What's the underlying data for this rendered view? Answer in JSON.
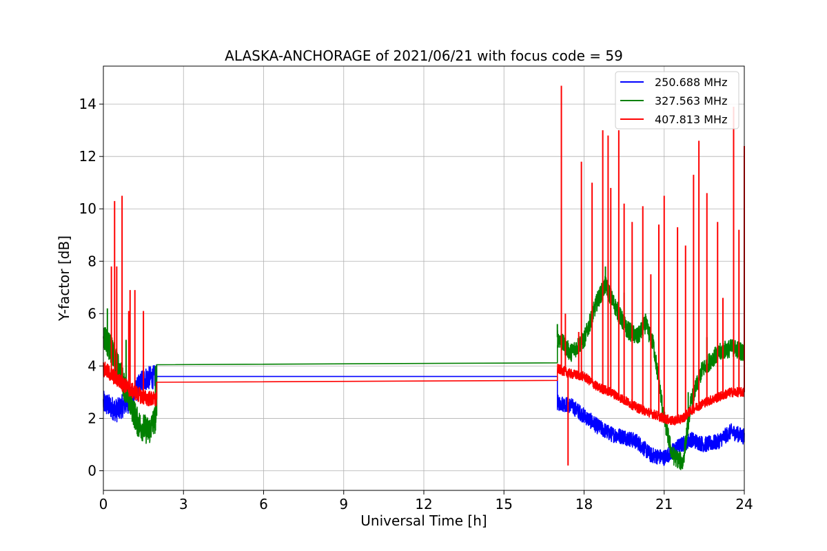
{
  "chart_data": {
    "type": "line",
    "title": "ALASKA-ANCHORAGE of 2021/06/21 with focus code = 59",
    "xlabel": "Universal Time [h]",
    "ylabel": "Y-factor [dB]",
    "xlim": [
      0,
      24
    ],
    "ylim": [
      -0.75,
      15.45
    ],
    "xticks": [
      0,
      3,
      6,
      9,
      12,
      15,
      18,
      21,
      24
    ],
    "yticks": [
      0,
      2,
      4,
      6,
      8,
      10,
      12,
      14
    ],
    "grid": true,
    "legend_position": "upper right",
    "series": [
      {
        "name": "250.688 MHz",
        "color": "#0000ff",
        "segments": [
          {
            "range": [
              0.0,
              2.0
            ],
            "noise": 0.45,
            "anchors": [
              [
                0.0,
                2.6
              ],
              [
                0.5,
                2.3
              ],
              [
                1.0,
                2.7
              ],
              [
                1.5,
                3.5
              ],
              [
                2.0,
                3.6
              ]
            ]
          },
          {
            "range": [
              2.0,
              17.0
            ],
            "noise": 0,
            "anchors": [
              [
                2.0,
                3.6
              ],
              [
                17.0,
                3.6
              ]
            ]
          },
          {
            "range": [
              17.0,
              24.0
            ],
            "noise": 0.3,
            "anchors": [
              [
                17.0,
                2.6
              ],
              [
                17.5,
                2.5
              ],
              [
                18.0,
                2.1
              ],
              [
                18.5,
                1.7
              ],
              [
                19.0,
                1.4
              ],
              [
                19.5,
                1.3
              ],
              [
                20.0,
                1.1
              ],
              [
                20.5,
                0.6
              ],
              [
                21.0,
                0.5
              ],
              [
                21.5,
                0.9
              ],
              [
                22.0,
                1.2
              ],
              [
                22.5,
                1.0
              ],
              [
                23.0,
                1.1
              ],
              [
                23.5,
                1.5
              ],
              [
                24.0,
                1.3
              ]
            ]
          }
        ],
        "spikes": []
      },
      {
        "name": "327.563 MHz",
        "color": "#008000",
        "segments": [
          {
            "range": [
              0.0,
              2.0
            ],
            "noise": 0.55,
            "anchors": [
              [
                0.0,
                5.2
              ],
              [
                0.3,
                4.6
              ],
              [
                0.6,
                3.8
              ],
              [
                1.0,
                2.6
              ],
              [
                1.3,
                1.8
              ],
              [
                1.7,
                1.5
              ],
              [
                2.0,
                2.1
              ]
            ]
          },
          {
            "range": [
              2.0,
              17.0
            ],
            "noise": 0,
            "anchors": [
              [
                2.0,
                4.05
              ],
              [
                17.0,
                4.12
              ]
            ]
          },
          {
            "range": [
              17.0,
              24.0
            ],
            "noise": 0.35,
            "anchors": [
              [
                17.0,
                5.1
              ],
              [
                17.5,
                4.5
              ],
              [
                18.0,
                5.0
              ],
              [
                18.5,
                6.5
              ],
              [
                18.8,
                7.1
              ],
              [
                19.2,
                6.2
              ],
              [
                19.6,
                5.4
              ],
              [
                20.0,
                5.1
              ],
              [
                20.3,
                5.6
              ],
              [
                20.6,
                4.8
              ],
              [
                21.0,
                2.0
              ],
              [
                21.3,
                0.6
              ],
              [
                21.7,
                0.3
              ],
              [
                22.0,
                2.6
              ],
              [
                22.4,
                3.8
              ],
              [
                22.8,
                4.3
              ],
              [
                23.2,
                4.6
              ],
              [
                23.6,
                4.7
              ],
              [
                24.0,
                4.5
              ]
            ]
          }
        ],
        "spikes": [
          [
            0.15,
            6.2
          ],
          [
            0.85,
            5.0
          ],
          [
            1.95,
            4.0
          ],
          [
            17.0,
            5.6
          ],
          [
            18.8,
            7.8
          ],
          [
            19.5,
            6.8
          ],
          [
            20.3,
            6.0
          ],
          [
            21.9,
            3.0
          ],
          [
            22.6,
            5.1
          ]
        ]
      },
      {
        "name": "407.813 MHz",
        "color": "#ff0000",
        "segments": [
          {
            "range": [
              0.0,
              2.0
            ],
            "noise": 0.3,
            "anchors": [
              [
                0.0,
                3.9
              ],
              [
                0.5,
                3.5
              ],
              [
                1.0,
                3.1
              ],
              [
                1.5,
                2.8
              ],
              [
                2.0,
                2.7
              ]
            ]
          },
          {
            "range": [
              2.0,
              17.0
            ],
            "noise": 0,
            "anchors": [
              [
                2.0,
                3.38
              ],
              [
                17.0,
                3.45
              ]
            ]
          },
          {
            "range": [
              17.0,
              24.0
            ],
            "noise": 0.18,
            "anchors": [
              [
                17.0,
                3.9
              ],
              [
                17.5,
                3.7
              ],
              [
                18.0,
                3.6
              ],
              [
                18.5,
                3.2
              ],
              [
                19.0,
                3.0
              ],
              [
                19.5,
                2.7
              ],
              [
                20.0,
                2.4
              ],
              [
                20.5,
                2.2
              ],
              [
                21.0,
                2.0
              ],
              [
                21.3,
                1.9
              ],
              [
                21.7,
                2.0
              ],
              [
                22.0,
                2.3
              ],
              [
                22.5,
                2.6
              ],
              [
                23.0,
                2.8
              ],
              [
                23.5,
                3.0
              ],
              [
                24.0,
                3.0
              ]
            ]
          }
        ],
        "spikes": [
          [
            0.3,
            7.8
          ],
          [
            0.42,
            10.3
          ],
          [
            0.5,
            7.8
          ],
          [
            0.7,
            10.5
          ],
          [
            0.95,
            6.1
          ],
          [
            1.0,
            6.9
          ],
          [
            1.18,
            6.9
          ],
          [
            1.5,
            6.1
          ],
          [
            17.15,
            14.7
          ],
          [
            17.4,
            0.2
          ],
          [
            17.3,
            6.0
          ],
          [
            17.8,
            5.3
          ],
          [
            17.9,
            11.8
          ],
          [
            18.3,
            11.0
          ],
          [
            18.7,
            13.0
          ],
          [
            18.9,
            12.8
          ],
          [
            19.0,
            10.8
          ],
          [
            19.3,
            13.0
          ],
          [
            19.5,
            10.2
          ],
          [
            19.8,
            9.5
          ],
          [
            20.2,
            10.1
          ],
          [
            20.5,
            7.5
          ],
          [
            20.8,
            9.4
          ],
          [
            21.0,
            10.5
          ],
          [
            21.5,
            9.3
          ],
          [
            21.8,
            8.6
          ],
          [
            22.1,
            11.3
          ],
          [
            22.3,
            12.6
          ],
          [
            22.6,
            10.6
          ],
          [
            23.0,
            9.5
          ],
          [
            23.2,
            6.6
          ],
          [
            23.6,
            13.9
          ],
          [
            23.8,
            9.2
          ],
          [
            24.0,
            12.4
          ]
        ]
      }
    ]
  }
}
